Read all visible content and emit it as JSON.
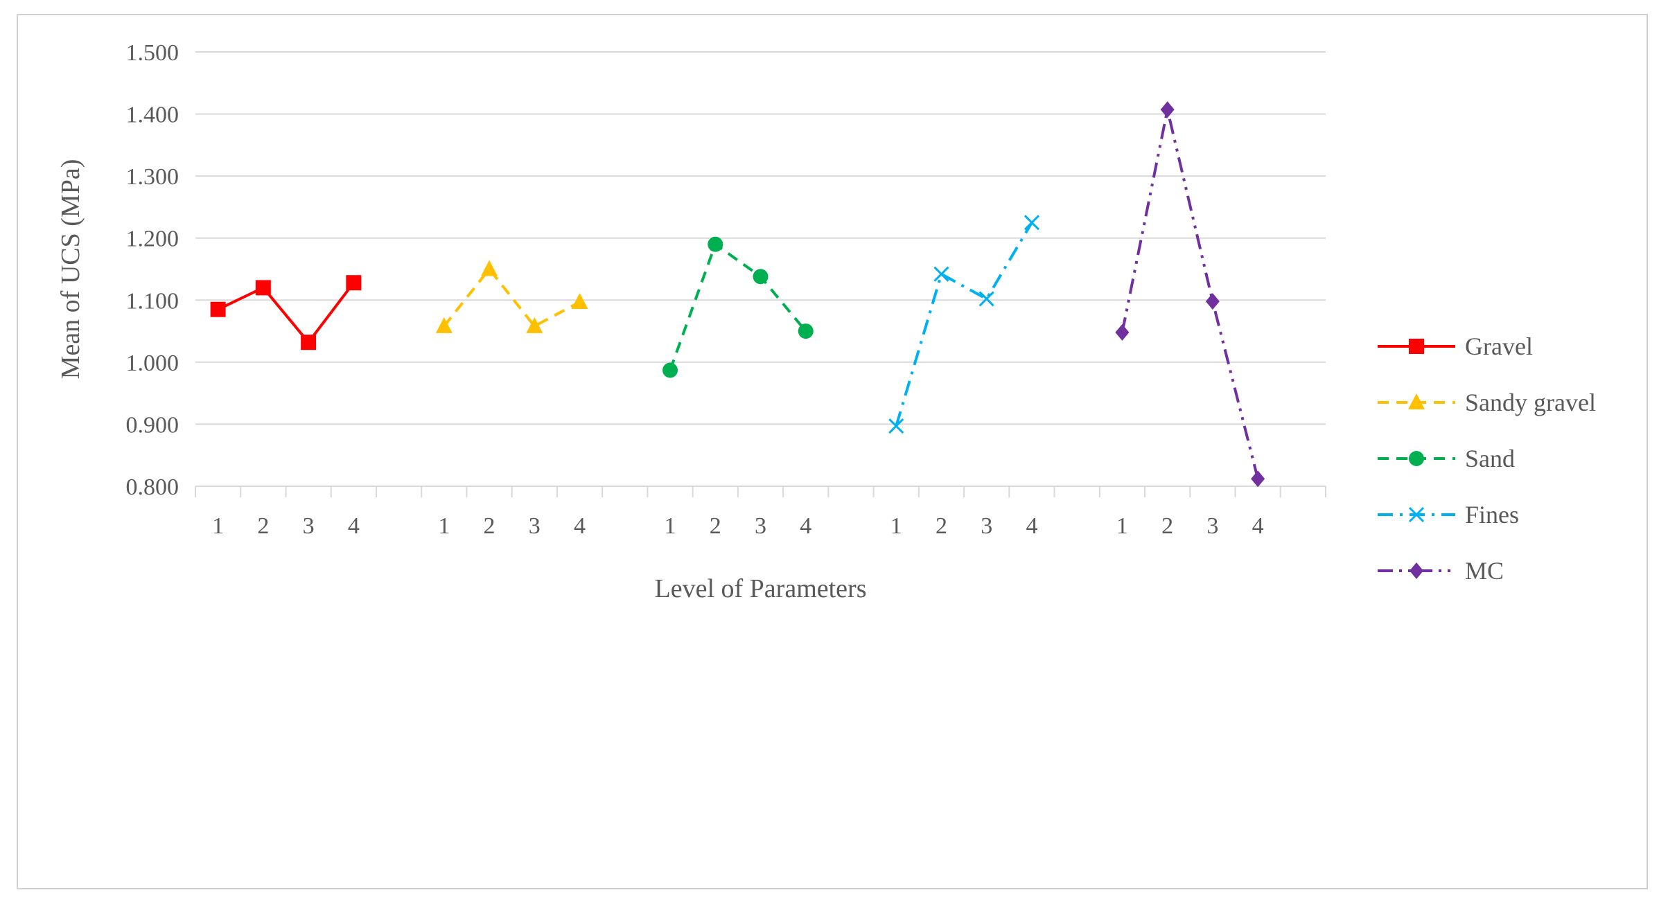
{
  "chart_data": {
    "type": "line",
    "xlabel": "Level of Parameters",
    "ylabel": "Mean of UCS (MPa)",
    "ylim": [
      0.8,
      1.5
    ],
    "yticks": [
      "0.800",
      "0.900",
      "1.000",
      "1.100",
      "1.200",
      "1.300",
      "1.400",
      "1.500"
    ],
    "grid": true,
    "legend_position": "right",
    "categories": [
      "1",
      "2",
      "3",
      "4"
    ],
    "series": [
      {
        "name": "Gravel",
        "values": [
          1.085,
          1.12,
          1.032,
          1.128
        ],
        "color": "#ff0000",
        "line_style": "solid",
        "marker": "square"
      },
      {
        "name": "Sandy gravel",
        "values": [
          1.058,
          1.15,
          1.058,
          1.097
        ],
        "color": "#ffc000",
        "line_style": "dashed",
        "marker": "triangle"
      },
      {
        "name": "Sand",
        "values": [
          0.987,
          1.19,
          1.138,
          1.05
        ],
        "color": "#00b050",
        "line_style": "dashed",
        "marker": "circle"
      },
      {
        "name": "Fines",
        "values": [
          0.897,
          1.142,
          1.102,
          1.225
        ],
        "color": "#00b0f0",
        "line_style": "dash-dot",
        "marker": "x"
      },
      {
        "name": "MC",
        "values": [
          1.048,
          1.407,
          1.098,
          0.812
        ],
        "color": "#7030a0",
        "line_style": "dash-dot-dot",
        "marker": "diamond"
      }
    ]
  }
}
